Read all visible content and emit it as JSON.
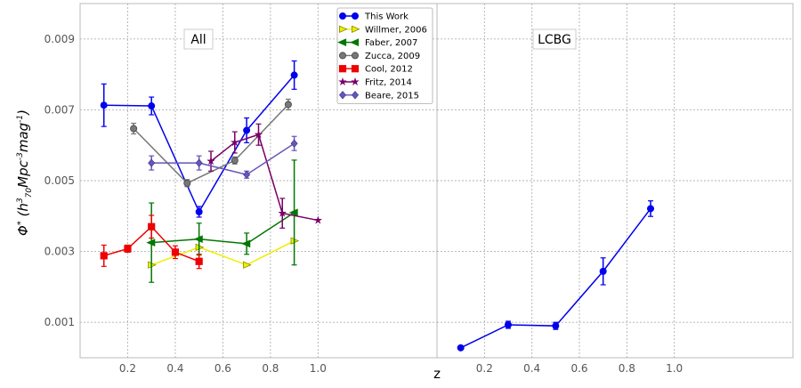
{
  "chart_data": {
    "type": "line",
    "xlabel": "z",
    "ylabel": "Φ* (h370 Mpc-3 mag-1)",
    "ylim": [
      0,
      0.01
    ],
    "y_ticks": [
      "0.001",
      "0.003",
      "0.005",
      "0.007",
      "0.009"
    ],
    "grid": true,
    "panels": [
      {
        "title": "All",
        "xlim": [
          0,
          1.5
        ],
        "x_ticks": [
          "0.2",
          "0.4",
          "0.6",
          "0.8",
          "1.0"
        ],
        "legend_position": "top-right",
        "series": [
          {
            "name": "This Work",
            "color": "#0000ee",
            "marker": "circle",
            "points": [
              {
                "x": 0.1,
                "y": 0.00713,
                "err": 0.0006
              },
              {
                "x": 0.3,
                "y": 0.00711,
                "err": 0.00025
              },
              {
                "x": 0.5,
                "y": 0.00412,
                "err": 0.00015
              },
              {
                "x": 0.7,
                "y": 0.00642,
                "err": 0.00035
              },
              {
                "x": 0.9,
                "y": 0.00798,
                "err": 0.0004
              }
            ]
          },
          {
            "name": "Willmer, 2006",
            "color": "#eeee00",
            "marker": "triangle-right",
            "points": [
              {
                "x": 0.3,
                "y": 0.00262,
                "err": 0
              },
              {
                "x": 0.5,
                "y": 0.00312,
                "err": 0
              },
              {
                "x": 0.7,
                "y": 0.00262,
                "err": 0
              },
              {
                "x": 0.9,
                "y": 0.0033,
                "err": 0
              }
            ]
          },
          {
            "name": "Faber, 2007",
            "color": "#007700",
            "marker": "triangle-left",
            "points": [
              {
                "x": 0.3,
                "y": 0.00325,
                "err": 0.00112
              },
              {
                "x": 0.5,
                "y": 0.00335,
                "err": 0.00045
              },
              {
                "x": 0.7,
                "y": 0.00322,
                "err": 0.0003
              },
              {
                "x": 0.9,
                "y": 0.0041,
                "err": 0.00148
              }
            ]
          },
          {
            "name": "Zucca, 2009",
            "color": "#777777",
            "marker": "octagon",
            "points": [
              {
                "x": 0.225,
                "y": 0.00647,
                "err": 0.00015
              },
              {
                "x": 0.45,
                "y": 0.00493,
                "err": 0.0001
              },
              {
                "x": 0.65,
                "y": 0.00557,
                "err": 0.0001
              },
              {
                "x": 0.875,
                "y": 0.00715,
                "err": 0.00015
              }
            ]
          },
          {
            "name": "Cool, 2012",
            "color": "#ee0000",
            "marker": "square",
            "points": [
              {
                "x": 0.1,
                "y": 0.00288,
                "err": 0.0003
              },
              {
                "x": 0.2,
                "y": 0.00308,
                "err": 0.0001
              },
              {
                "x": 0.3,
                "y": 0.0037,
                "err": 0.00032
              },
              {
                "x": 0.4,
                "y": 0.00298,
                "err": 0.00018
              },
              {
                "x": 0.5,
                "y": 0.00272,
                "err": 0.0002
              }
            ]
          },
          {
            "name": "Fritz, 2014",
            "color": "#770066",
            "marker": "star",
            "points": [
              {
                "x": 0.55,
                "y": 0.00555,
                "err": 0.00028
              },
              {
                "x": 0.65,
                "y": 0.00608,
                "err": 0.0003
              },
              {
                "x": 0.75,
                "y": 0.0063,
                "err": 0.0003
              },
              {
                "x": 0.85,
                "y": 0.00408,
                "err": 0.00042
              },
              {
                "x": 1.0,
                "y": 0.00388,
                "err": 0
              }
            ]
          },
          {
            "name": "Beare, 2015",
            "color": "#6655bb",
            "marker": "diamond",
            "points": [
              {
                "x": 0.3,
                "y": 0.0055,
                "err": 0.0002
              },
              {
                "x": 0.5,
                "y": 0.0055,
                "err": 0.0002
              },
              {
                "x": 0.7,
                "y": 0.00517,
                "err": 0.0001
              },
              {
                "x": 0.9,
                "y": 0.00605,
                "err": 0.0002
              }
            ]
          }
        ]
      },
      {
        "title": "LCBG",
        "xlim": [
          0,
          1.5
        ],
        "x_ticks": [
          "0.2",
          "0.4",
          "0.6",
          "0.8",
          "1.0"
        ],
        "series": [
          {
            "name": "This Work",
            "color": "#0000ee",
            "marker": "circle",
            "points": [
              {
                "x": 0.1,
                "y": 0.00028,
                "err": 0
              },
              {
                "x": 0.3,
                "y": 0.00093,
                "err": 0.0001
              },
              {
                "x": 0.5,
                "y": 0.0009,
                "err": 0.0001
              },
              {
                "x": 0.7,
                "y": 0.00244,
                "err": 0.00038
              },
              {
                "x": 0.9,
                "y": 0.00421,
                "err": 0.00022
              }
            ]
          }
        ]
      }
    ]
  }
}
